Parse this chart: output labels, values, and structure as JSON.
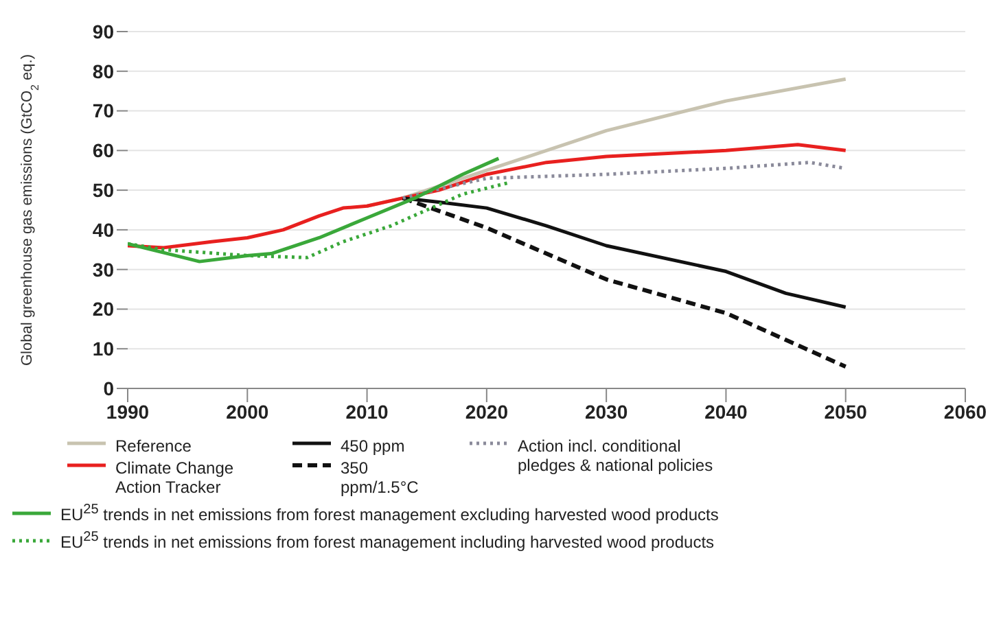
{
  "chart_data": {
    "type": "line",
    "ylabel": "Global greenhouse gas emissions (GtCO$_{2}$ eq.)",
    "xlim": [
      1990,
      2060
    ],
    "xticks": [
      1990,
      2000,
      2010,
      2020,
      2030,
      2040,
      2050,
      2060
    ],
    "ylim": [
      0,
      90
    ],
    "yticks": [
      0,
      10,
      20,
      30,
      40,
      50,
      60,
      70,
      80,
      90
    ],
    "grid": "y",
    "legend": "bottom",
    "marker": "none",
    "series": [
      {
        "name": "Reference",
        "color": "#c8c3b0",
        "line_style": "solid",
        "x": [
          2010,
          2013,
          2020,
          2030,
          2040,
          2050
        ],
        "values": [
          46,
          48,
          55,
          65,
          72.5,
          78
        ]
      },
      {
        "name": "Climate Change Action Tracker",
        "color": "#e8201f",
        "line_style": "solid",
        "x": [
          1990,
          1993,
          1997,
          2000,
          2003,
          2006,
          2008,
          2010,
          2013,
          2016,
          2020,
          2025,
          2030,
          2040,
          2046,
          2050
        ],
        "values": [
          36,
          35.5,
          37,
          38,
          40,
          43.5,
          45.5,
          46,
          48,
          50,
          54,
          57,
          58.5,
          60,
          61.5,
          60
        ]
      },
      {
        "name": "450 ppm",
        "color": "#111111",
        "line_style": "solid",
        "x": [
          2013,
          2016,
          2020,
          2025,
          2030,
          2040,
          2045,
          2050
        ],
        "values": [
          48,
          47,
          45.5,
          41,
          36,
          29.5,
          24,
          20.5
        ]
      },
      {
        "name": "350 ppm/1.5°C",
        "color": "#111111",
        "line_style": "dashed",
        "x": [
          2013,
          2020,
          2030,
          2040,
          2050
        ],
        "values": [
          48,
          40.5,
          27.5,
          19,
          5.5
        ]
      },
      {
        "name": "Action incl. conditional pledges & national policies",
        "color": "#8a8a9a",
        "line_style": "dotted",
        "x": [
          2013,
          2017,
          2020,
          2025,
          2030,
          2040,
          2047,
          2050
        ],
        "values": [
          48,
          51,
          53,
          53.5,
          54,
          55.5,
          57,
          55.5
        ]
      },
      {
        "name": "EU$^{25}$ trends in net emissions from forest management excluding harvested wood products",
        "color": "#3aa83a",
        "line_style": "solid",
        "x": [
          1990,
          1996,
          2000,
          2002,
          2006,
          2010,
          2014,
          2018,
          2021
        ],
        "values": [
          36.5,
          32,
          33.5,
          34,
          38,
          43,
          48,
          54,
          58
        ]
      },
      {
        "name": "EU$^{25}$ trends in net emissions from forest management including harvested wood products",
        "color": "#3aa83a",
        "line_style": "dotted",
        "x": [
          1990,
          1993,
          2000,
          2005,
          2008,
          2012,
          2015,
          2018,
          2022
        ],
        "values": [
          36.5,
          35,
          33.5,
          33,
          37,
          41,
          45,
          49,
          52
        ]
      }
    ]
  }
}
